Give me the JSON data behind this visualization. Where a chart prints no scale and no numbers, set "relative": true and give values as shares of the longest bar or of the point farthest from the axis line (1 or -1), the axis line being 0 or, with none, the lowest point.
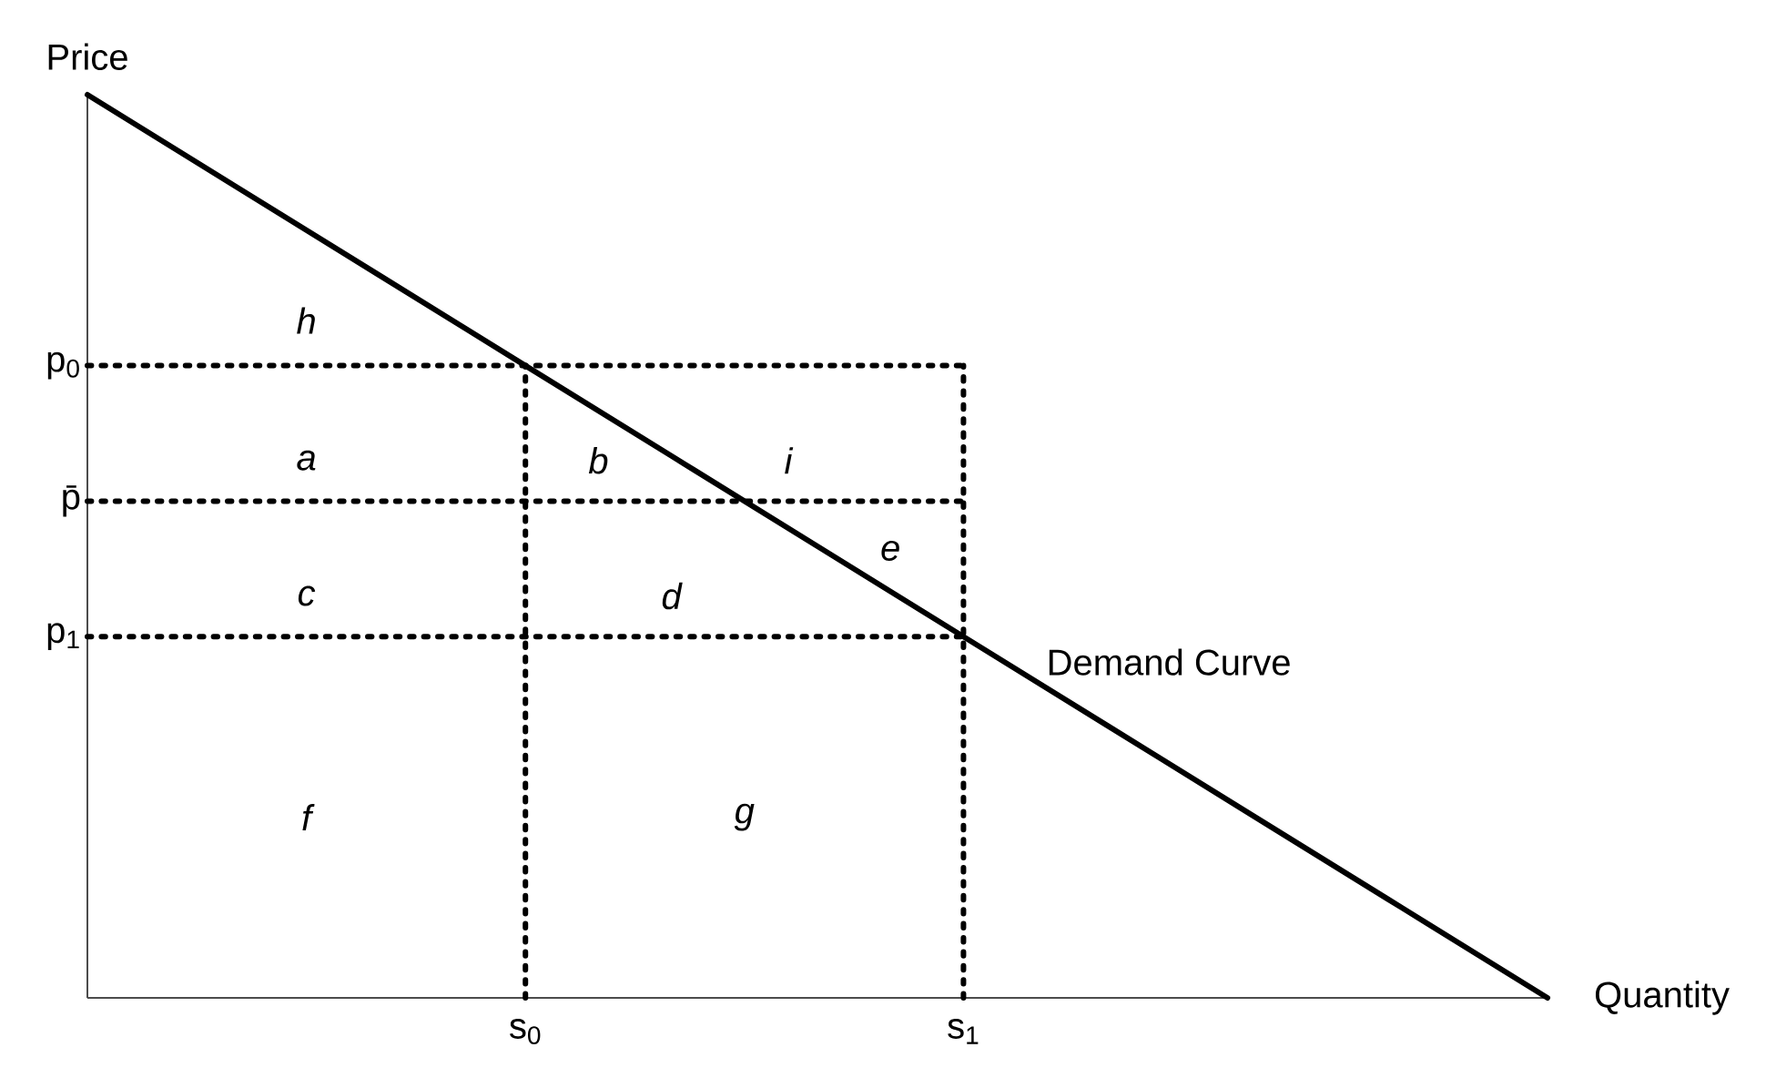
{
  "chart_data": {
    "type": "line",
    "relative": true,
    "xlabel": "Quantity",
    "ylabel": "Price",
    "categories": [
      null,
      null,
      null,
      "s$_{0}$",
      null,
      null,
      "s$_{1}$",
      null,
      null,
      null,
      null
    ],
    "series": [
      {
        "name": "Demand Curve",
        "color": "#000000",
        "line_style": "solid",
        "values": [
          1,
          0.9,
          0.8,
          0.7,
          0.6,
          0.5,
          0.4,
          0.3,
          0.2,
          0.1,
          0
        ]
      }
    ],
    "ref_lines": [
      {
        "axis": "y",
        "value": 0.7,
        "label": "p$_{0}$",
        "line_style": "dotted",
        "color": "#000000"
      },
      {
        "axis": "y",
        "value": 0.55,
        "label": "p̄",
        "line_style": "dotted",
        "color": "#000000"
      },
      {
        "axis": "y",
        "value": 0.4,
        "label": "p$_{1}$",
        "line_style": "dotted",
        "color": "#000000"
      },
      {
        "axis": "x",
        "value": "s$_{0}$",
        "line_style": "dotted",
        "color": "#000000"
      },
      {
        "axis": "x",
        "value": "s$_{1}$",
        "line_style": "dotted",
        "color": "#000000"
      }
    ],
    "annotations": [
      "h",
      "a",
      "b",
      "i",
      "e",
      "c",
      "d",
      "f",
      "g"
    ]
  }
}
